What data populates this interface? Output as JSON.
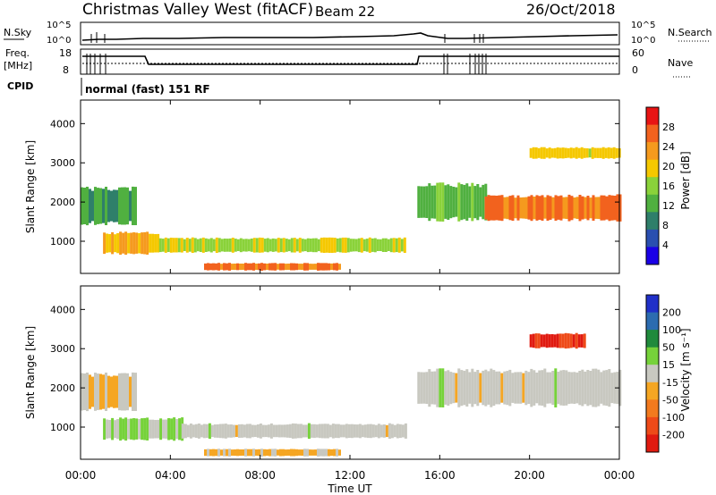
{
  "header": {
    "station": "Christmas Valley West (fitACF)",
    "beam": "Beam 22",
    "date": "26/Oct/2018"
  },
  "summary_panel": {
    "nsky_label": "N.Sky",
    "nsearch_label": "N.Search",
    "noise_ticks": [
      "10^5",
      "10^0"
    ],
    "freq_label_line1": "Freq.",
    "freq_label_line2": "[MHz]",
    "freq_ticks": [
      "18",
      "8"
    ],
    "nave_label": "Nave",
    "nave_ticks": [
      "60",
      "0"
    ],
    "cpid_label": "CPID",
    "cpid_text": "normal (fast) 151 RF"
  },
  "colors": {
    "power_scale": [
      "#1a00e6",
      "#2a4fb0",
      "#2f7f6a",
      "#50b040",
      "#8ad23a",
      "#f5c800",
      "#f59a1e",
      "#f2621e",
      "#e81414"
    ],
    "velocity_scale": [
      "#2030c8",
      "#2c6cb0",
      "#208a3c",
      "#76d23a",
      "#c8c8c0",
      "#f5a623",
      "#f27a1e",
      "#ee4a18",
      "#e01a10"
    ]
  },
  "chart_data": [
    {
      "type": "heatmap",
      "title": "",
      "ylabel": "Slant Range [km]",
      "xlabel": "",
      "x_range": [
        "00:00",
        "24:00"
      ],
      "ylim": [
        180,
        4600
      ],
      "x_ticks": [
        "00:00",
        "04:00",
        "08:00",
        "12:00",
        "16:00",
        "20:00",
        "00:00"
      ],
      "y_ticks": [
        1000,
        2000,
        3000,
        4000
      ],
      "colorbar": {
        "label": "Power [dB]",
        "ticks": [
          "28",
          "24",
          "20",
          "16",
          "12",
          "8",
          "4"
        ],
        "range": [
          0,
          30
        ]
      },
      "regions": [
        {
          "start_hour": 0.0,
          "end_hour": 2.5,
          "range_km": [
            1400,
            2400
          ],
          "value": 10
        },
        {
          "start_hour": 1.0,
          "end_hour": 3.5,
          "range_km": [
            650,
            1250
          ],
          "value": 20
        },
        {
          "start_hour": 3.5,
          "end_hour": 14.5,
          "range_km": [
            700,
            1100
          ],
          "value": 16
        },
        {
          "start_hour": 5.5,
          "end_hour": 11.5,
          "range_km": [
            250,
            450
          ],
          "value": 24
        },
        {
          "start_hour": 15.0,
          "end_hour": 18.0,
          "range_km": [
            1500,
            2500
          ],
          "value": 12
        },
        {
          "start_hour": 18.0,
          "end_hour": 24.0,
          "range_km": [
            1500,
            2200
          ],
          "value": 24
        },
        {
          "start_hour": 20.0,
          "end_hour": 24.0,
          "range_km": [
            3100,
            3400
          ],
          "value": 18
        }
      ]
    },
    {
      "type": "heatmap",
      "title": "",
      "ylabel": "Slant Range [km]",
      "xlabel": "Time UT",
      "x_range": [
        "00:00",
        "24:00"
      ],
      "ylim": [
        180,
        4600
      ],
      "x_ticks": [
        "00:00",
        "04:00",
        "08:00",
        "12:00",
        "16:00",
        "20:00",
        "00:00"
      ],
      "y_ticks": [
        1000,
        2000,
        3000,
        4000
      ],
      "colorbar": {
        "label": "Velocity [m s⁻¹]",
        "ticks": [
          "200",
          "100",
          "50",
          "15",
          "-15",
          "-50",
          "-100",
          "-200"
        ],
        "range": [
          -250,
          250
        ]
      },
      "regions": [
        {
          "start_hour": 0.0,
          "end_hour": 2.5,
          "range_km": [
            1400,
            2400
          ],
          "value": -40
        },
        {
          "start_hour": 1.0,
          "end_hour": 4.5,
          "range_km": [
            650,
            1250
          ],
          "value": 30
        },
        {
          "start_hour": 4.5,
          "end_hour": 14.5,
          "range_km": [
            700,
            1100
          ],
          "value": 0
        },
        {
          "start_hour": 5.5,
          "end_hour": 11.5,
          "range_km": [
            250,
            450
          ],
          "value": -40
        },
        {
          "start_hour": 15.0,
          "end_hour": 24.0,
          "range_km": [
            1500,
            2500
          ],
          "value": 0
        },
        {
          "start_hour": 20.0,
          "end_hour": 22.5,
          "range_km": [
            3000,
            3400
          ],
          "value": -200
        }
      ]
    }
  ]
}
